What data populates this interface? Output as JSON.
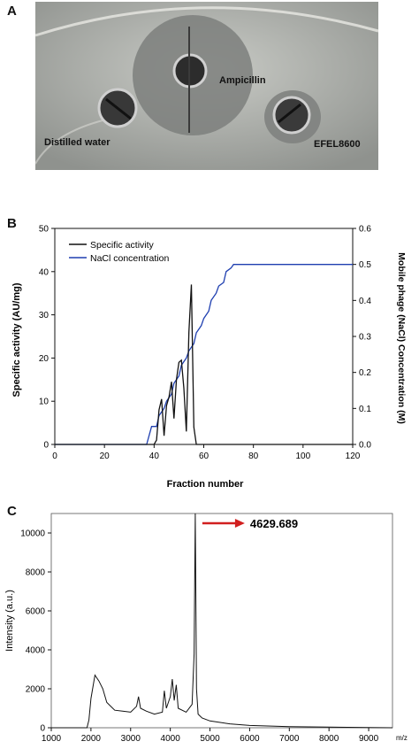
{
  "panels": {
    "A": {
      "letter": "A",
      "labels": {
        "center": "Ampicillin",
        "left": "Distilled water",
        "right": "EFEL8600"
      }
    },
    "B": {
      "letter": "B",
      "xlabel": "Fraction number",
      "ylabel_left": "Specific activity (AU/mg)",
      "ylabel_right": "Mobile phage (NaCl) Concentration (M)",
      "legend": [
        "Specific activity",
        "NaCl concentration"
      ]
    },
    "C": {
      "letter": "C",
      "ylabel": "Intensity (a.u.)",
      "xunit": "m/z",
      "peak_label": "4629.689"
    }
  },
  "colors": {
    "activity": "#111111",
    "nacl": "#1f3fb0",
    "arrow": "#d11f1f",
    "spectrum": "#111111"
  },
  "chart_data": [
    {
      "type": "line",
      "panel": "B",
      "xlabel": "Fraction number",
      "ylabel": "Specific activity (AU/mg)",
      "y2label": "Mobile phage (NaCl) Concentration (M)",
      "xlim": [
        0,
        120
      ],
      "ylim": [
        0,
        50
      ],
      "y2lim": [
        0,
        0.6
      ],
      "xticks": [
        0,
        20,
        40,
        60,
        80,
        100,
        120
      ],
      "yticks": [
        0,
        10,
        20,
        30,
        40,
        50
      ],
      "y2ticks": [
        0.0,
        0.1,
        0.2,
        0.3,
        0.4,
        0.5,
        0.6
      ],
      "legend_position": "top-left",
      "series": [
        {
          "name": "Specific activity",
          "axis": "left",
          "x": [
            0,
            40,
            41,
            42,
            43,
            44,
            45,
            46,
            47,
            48,
            49,
            50,
            51,
            52,
            53,
            54,
            55,
            56,
            57,
            120
          ],
          "y": [
            0,
            0,
            1,
            8,
            10.5,
            2,
            9,
            11,
            14.5,
            6,
            15,
            19,
            19.5,
            13,
            3,
            26,
            37,
            4,
            0,
            0
          ]
        },
        {
          "name": "NaCl concentration",
          "axis": "right",
          "x": [
            0,
            37,
            39,
            41,
            42,
            44,
            45,
            47,
            48,
            50,
            51,
            53,
            54,
            56,
            57,
            59,
            60,
            62,
            63,
            65,
            66,
            68,
            69,
            71,
            72,
            74,
            75,
            120
          ],
          "y": [
            0,
            0,
            0.05,
            0.05,
            0.08,
            0.1,
            0.12,
            0.14,
            0.17,
            0.19,
            0.22,
            0.24,
            0.26,
            0.28,
            0.31,
            0.33,
            0.35,
            0.37,
            0.4,
            0.42,
            0.44,
            0.45,
            0.48,
            0.49,
            0.5,
            0.5,
            0.5,
            0.5
          ]
        }
      ]
    },
    {
      "type": "line",
      "panel": "C",
      "xlabel": "m/z",
      "ylabel": "Intensity (a.u.)",
      "xlim": [
        1000,
        9600
      ],
      "ylim": [
        0,
        11000
      ],
      "xticks": [
        1000,
        2000,
        3000,
        4000,
        5000,
        6000,
        7000,
        8000,
        9000
      ],
      "yticks": [
        0,
        2000,
        4000,
        6000,
        8000,
        10000
      ],
      "annotation": {
        "label": "4629.689",
        "x": 4629.689
      },
      "series": [
        {
          "name": "spectrum",
          "x": [
            1000,
            1900,
            1950,
            2000,
            2100,
            2200,
            2300,
            2400,
            2600,
            2800,
            3000,
            3150,
            3200,
            3250,
            3400,
            3600,
            3800,
            3850,
            3900,
            4000,
            4050,
            4100,
            4150,
            4200,
            4400,
            4550,
            4600,
            4629.689,
            4660,
            4700,
            4800,
            5000,
            5500,
            6000,
            7000,
            8000,
            9000,
            9600
          ],
          "y": [
            0,
            0,
            400,
            1500,
            2700,
            2400,
            2000,
            1300,
            900,
            850,
            800,
            1100,
            1600,
            1000,
            850,
            700,
            800,
            1900,
            1000,
            1600,
            2500,
            1400,
            2200,
            1000,
            800,
            1200,
            3800,
            11000,
            2000,
            700,
            500,
            350,
            200,
            120,
            60,
            30,
            10,
            0
          ]
        }
      ]
    }
  ]
}
